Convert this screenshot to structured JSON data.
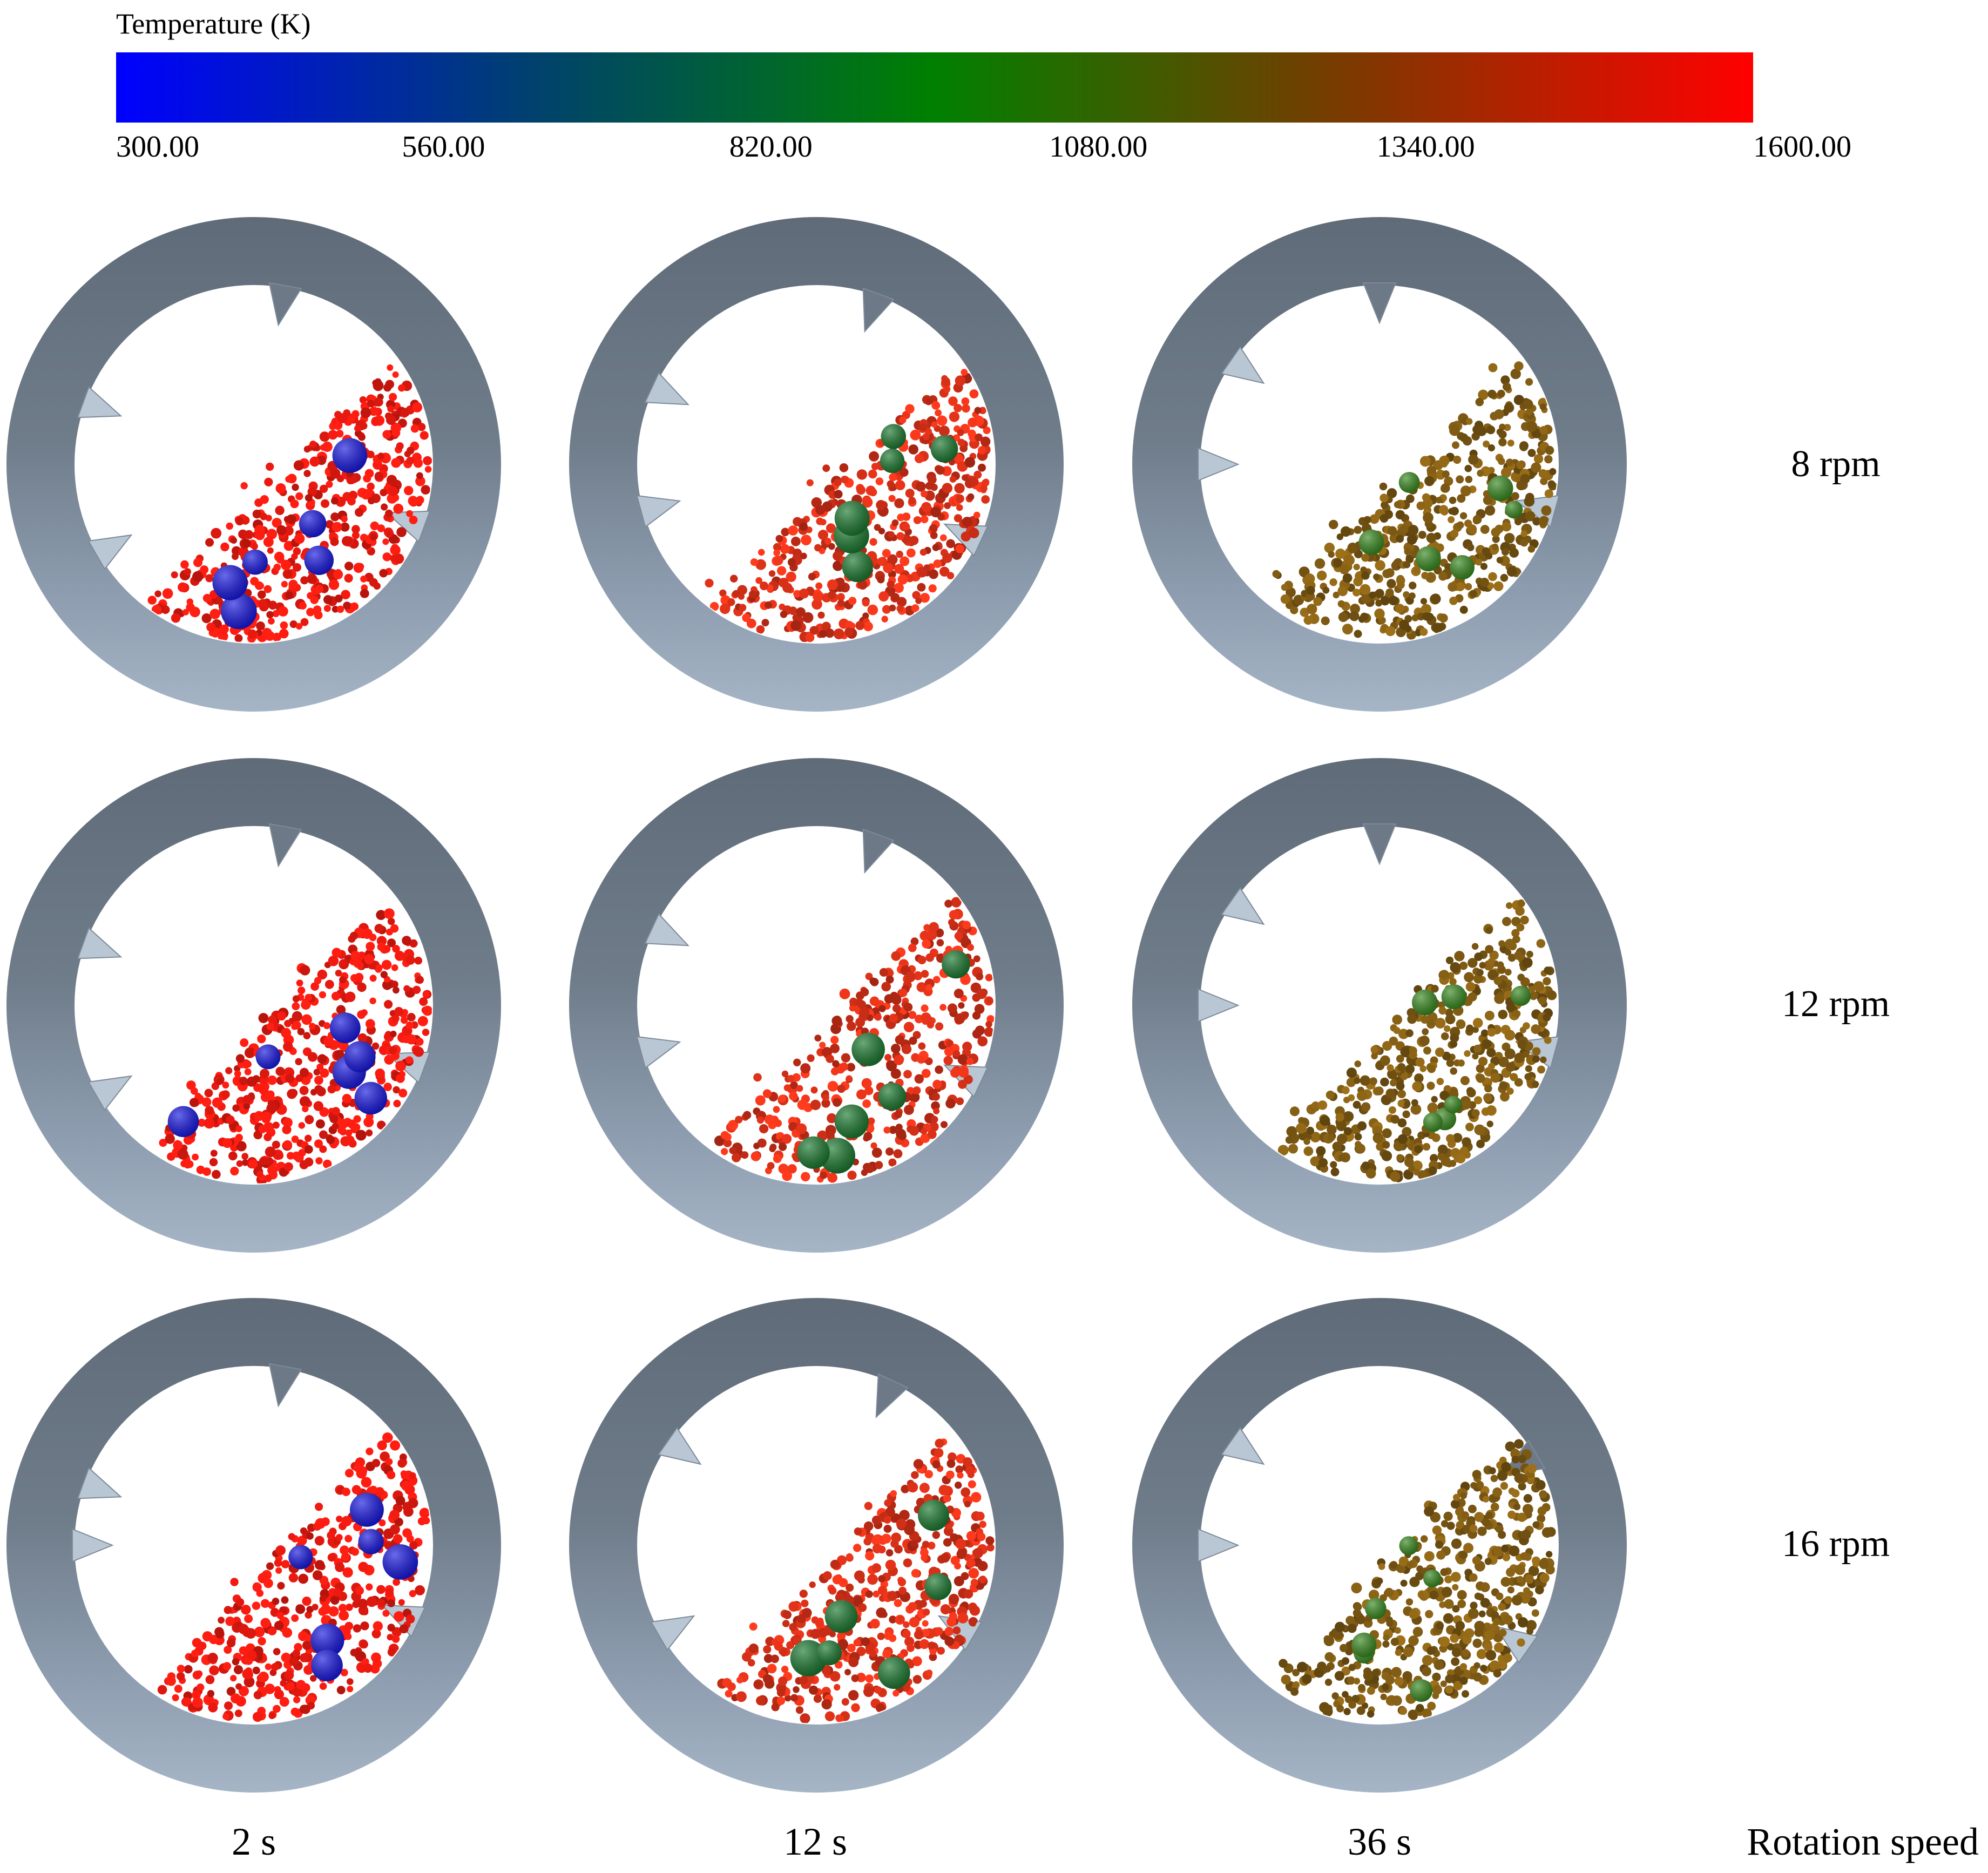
{
  "colorbar": {
    "title": "Temperature (K)",
    "min": 300,
    "max": 1600,
    "ticks": [
      "300.00",
      "560.00",
      "820.00",
      "1080.00",
      "1340.00",
      "1600.00"
    ],
    "gradient_colors": [
      "#0000ff",
      "#004060",
      "#008000",
      "#604000",
      "#ff0000"
    ]
  },
  "column_labels": [
    "2 s",
    "12 s",
    "36 s"
  ],
  "row_labels": [
    "8 rpm",
    "12 rpm",
    "16 rpm"
  ],
  "corner_label": "Rotation speed",
  "panel_style": {
    "bed_colors_by_column": [
      "#ee1a10",
      "#d63018",
      "#7e5a14"
    ],
    "cold_particle_color": "#1a1ae0",
    "warm_particle_color": "#1e7a32",
    "hot_green_particle_color": "#3a8a22",
    "ring_dark": "#5f6b78",
    "ring_light": "#9aaabb"
  }
}
